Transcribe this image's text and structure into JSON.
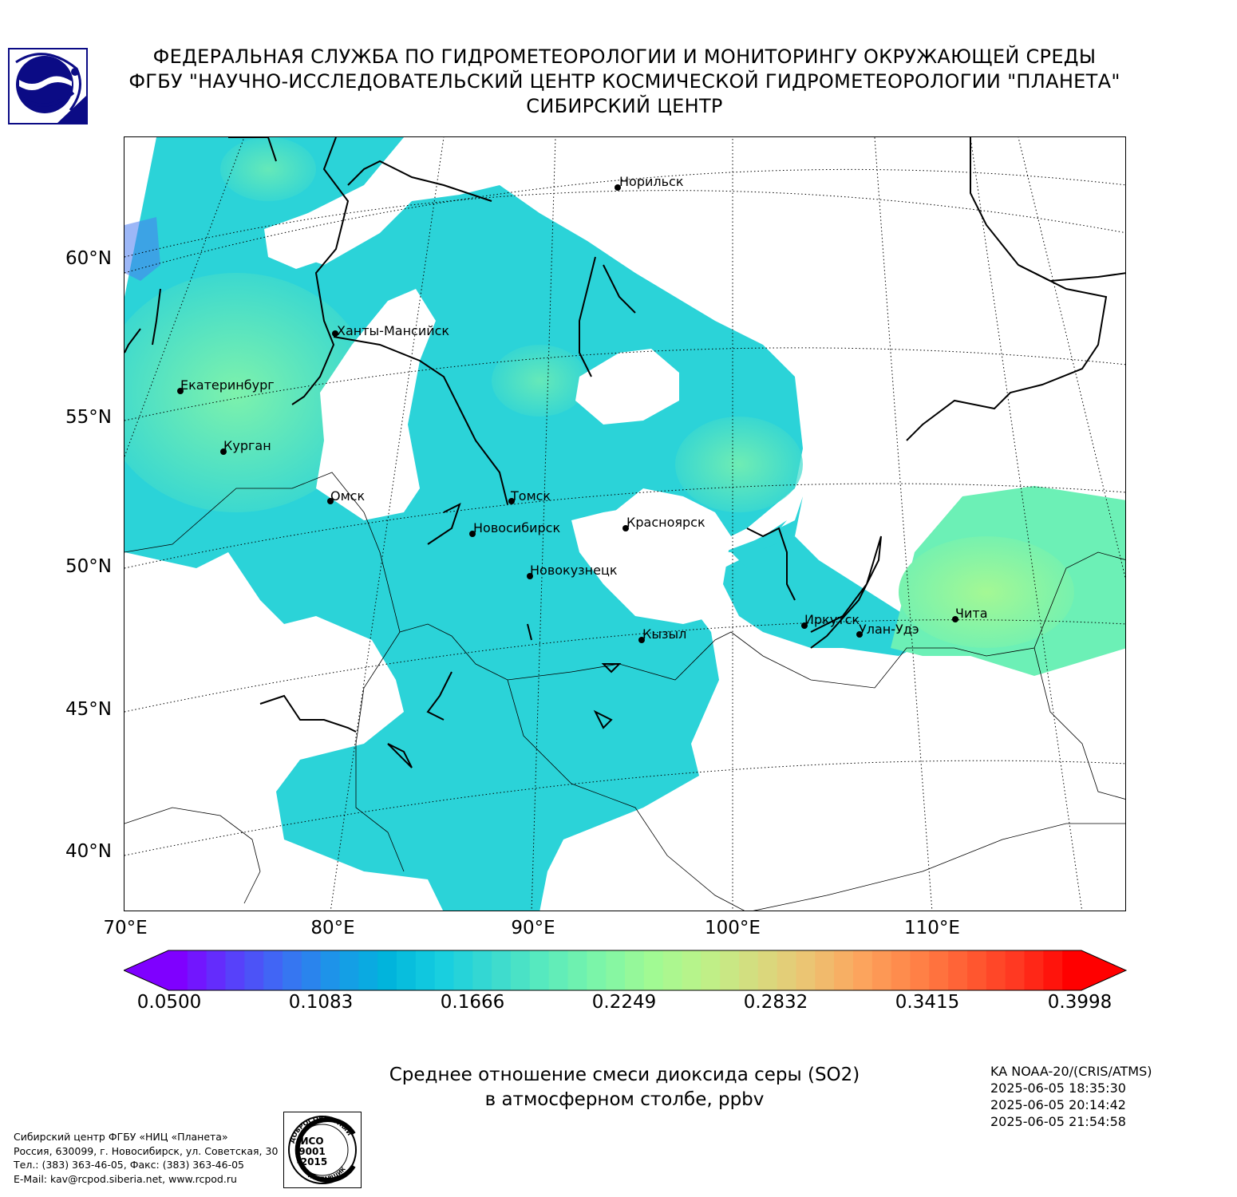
{
  "header": {
    "lines": [
      "ФЕДЕРАЛЬНАЯ СЛУЖБА ПО ГИДРОМЕТЕОРОЛОГИИ И МОНИТОРИНГУ ОКРУЖАЮЩЕЙ СРЕДЫ",
      "ФГБУ \"НАУЧНО-ИССЛЕДОВАТЕЛЬСКИЙ ЦЕНТР КОСМИЧЕСКОЙ ГИДРОМЕТЕОРОЛОГИИ \"ПЛАНЕТА\"",
      "СИБИРСКИЙ ЦЕНТР"
    ]
  },
  "logo": {
    "icon": "roshydromet-emblem",
    "color": "#0b0b85"
  },
  "map": {
    "lat_labels": [
      "60°N",
      "55°N",
      "50°N",
      "45°N",
      "40°N"
    ],
    "lon_labels": [
      "70°E",
      "80°E",
      "90°E",
      "100°E",
      "110°E"
    ],
    "cities": [
      {
        "name": "Норильск"
      },
      {
        "name": "Ханты-Мансийск"
      },
      {
        "name": "Екатеринбург"
      },
      {
        "name": "Курган"
      },
      {
        "name": "Омск"
      },
      {
        "name": "Томск"
      },
      {
        "name": "Новосибирск"
      },
      {
        "name": "Красноярск"
      },
      {
        "name": "Новокузнецк"
      },
      {
        "name": "Кызыл"
      },
      {
        "name": "Иркутск"
      },
      {
        "name": "Улан-Удэ"
      },
      {
        "name": "Чита"
      }
    ]
  },
  "colorbar": {
    "min": 0.05,
    "max": 0.3998,
    "ticks": [
      "0.0500",
      "0.1083",
      "0.1666",
      "0.2249",
      "0.2832",
      "0.3415",
      "0.3998"
    ],
    "colors": [
      "#7f00ff",
      "#5a3dfb",
      "#3b6ff3",
      "#1b97e8",
      "#00b5dc",
      "#17cee0",
      "#3ad9d0",
      "#5aebbd",
      "#7cf5a8",
      "#a0fa94",
      "#bdf288",
      "#d6dc7f",
      "#ecc372",
      "#fca55d",
      "#ff8448",
      "#ff5d33",
      "#ff3620",
      "#ff0000"
    ]
  },
  "product": {
    "title_line1": "Среднее отношение смеси диоксида серы (SO2)",
    "title_line2": "в атмосферном столбе, ppbv"
  },
  "satellite": {
    "instrument": "KA NOAA-20/(CRIS/ATMS)",
    "times": [
      "2025-06-05 18:35:30",
      "2025-06-05 20:14:42",
      "2025-06-05 21:54:58"
    ]
  },
  "footer": {
    "lines": [
      "Сибирский центр ФГБУ «НИЦ «Планета»",
      "Россия, 630099, г. Новосибирск, ул. Советская, 30",
      "Тел.: (383) 363-46-05, Факс: (383) 363-46-05",
      "E-Mail: kav@rcpod.siberia.net, www.rcpod.ru"
    ]
  },
  "iso_stamp": {
    "arc_top": "ДОБРОСОВЕСТНЫЙ",
    "arc_bottom": "ПОСТАВЩИК",
    "l1": "ИСО",
    "l2": "9001",
    "l3": "-2015"
  }
}
